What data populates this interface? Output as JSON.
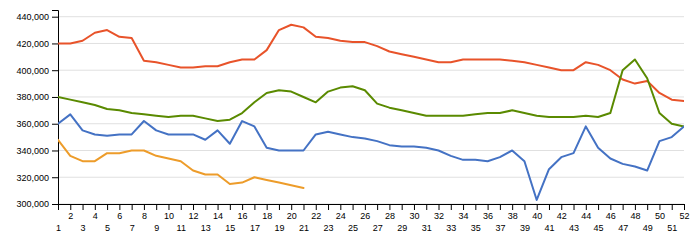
{
  "chart_data": {
    "type": "line",
    "x": [
      1,
      2,
      3,
      4,
      5,
      6,
      7,
      8,
      9,
      10,
      11,
      12,
      13,
      14,
      15,
      16,
      17,
      18,
      19,
      20,
      21,
      22,
      23,
      24,
      25,
      26,
      27,
      28,
      29,
      30,
      31,
      32,
      33,
      34,
      35,
      36,
      37,
      38,
      39,
      40,
      41,
      42,
      43,
      44,
      45,
      46,
      47,
      48,
      49,
      50,
      51,
      52
    ],
    "series": [
      {
        "color": "#e8532a",
        "values": [
          420000,
          420000,
          422000,
          428000,
          430000,
          425000,
          424000,
          407000,
          406000,
          404000,
          402000,
          402000,
          403000,
          403000,
          406000,
          408000,
          408000,
          415000,
          430000,
          434000,
          432000,
          425000,
          424000,
          422000,
          421000,
          421000,
          418000,
          414000,
          412000,
          410000,
          408000,
          406000,
          406000,
          408000,
          408000,
          408000,
          408000,
          407000,
          406000,
          404000,
          402000,
          400000,
          400000,
          406000,
          404000,
          400000,
          393000,
          390000,
          392000,
          383000,
          378000,
          377000
        ]
      },
      {
        "color": "#5a8a00",
        "values": [
          380000,
          378000,
          376000,
          374000,
          371000,
          370000,
          368000,
          367000,
          366000,
          365000,
          366000,
          366000,
          364000,
          362000,
          363000,
          368000,
          376000,
          383000,
          385000,
          384000,
          380000,
          376000,
          384000,
          387000,
          388000,
          385000,
          375000,
          372000,
          370000,
          368000,
          366000,
          366000,
          366000,
          366000,
          367000,
          368000,
          368000,
          370000,
          368000,
          366000,
          365000,
          365000,
          365000,
          366000,
          365000,
          368000,
          400000,
          408000,
          394000,
          368000,
          360000,
          358000
        ]
      },
      {
        "color": "#4472c4",
        "values": [
          360000,
          367000,
          355000,
          352000,
          351000,
          352000,
          352000,
          362000,
          355000,
          352000,
          352000,
          352000,
          348000,
          355000,
          345000,
          362000,
          358000,
          342000,
          340000,
          340000,
          340000,
          352000,
          354000,
          352000,
          350000,
          349000,
          347000,
          344000,
          343000,
          343000,
          342000,
          340000,
          336000,
          333000,
          333000,
          332000,
          335000,
          340000,
          332000,
          303000,
          326000,
          335000,
          338000,
          358000,
          342000,
          334000,
          330000,
          328000,
          325000,
          347000,
          350000,
          358000
        ]
      },
      {
        "color": "#ed9c2a",
        "values": [
          348000,
          336000,
          332000,
          332000,
          338000,
          338000,
          340000,
          340000,
          336000,
          334000,
          332000,
          325000,
          322000,
          322000,
          315000,
          316000,
          320000,
          318000,
          316000,
          314000,
          312000,
          null,
          null,
          null,
          null,
          null,
          null,
          null,
          null,
          null,
          null,
          null,
          null,
          null,
          null,
          null,
          null,
          null,
          null,
          null,
          null,
          null,
          null,
          null,
          null,
          null,
          null,
          null,
          null,
          null,
          null,
          null
        ]
      }
    ],
    "xlim": [
      1,
      52
    ],
    "xticks": [
      1,
      2,
      3,
      4,
      5,
      6,
      7,
      8,
      9,
      10,
      11,
      12,
      13,
      14,
      15,
      16,
      17,
      18,
      19,
      20,
      21,
      22,
      23,
      24,
      25,
      26,
      27,
      28,
      29,
      30,
      31,
      32,
      33,
      34,
      35,
      36,
      37,
      38,
      39,
      40,
      41,
      42,
      43,
      44,
      45,
      46,
      47,
      48,
      49,
      50,
      51,
      52
    ],
    "ylim": [
      300000,
      445000
    ],
    "yticks": [
      {
        "value": 300000,
        "label": "300,000"
      },
      {
        "value": 320000,
        "label": "320,000"
      },
      {
        "value": 340000,
        "label": "340,000"
      },
      {
        "value": 360000,
        "label": "360,000"
      },
      {
        "value": 380000,
        "label": "380,000"
      },
      {
        "value": 400000,
        "label": "400,000"
      },
      {
        "value": 420000,
        "label": "420,000"
      },
      {
        "value": 440000,
        "label": "440,000"
      }
    ],
    "grid": true
  }
}
